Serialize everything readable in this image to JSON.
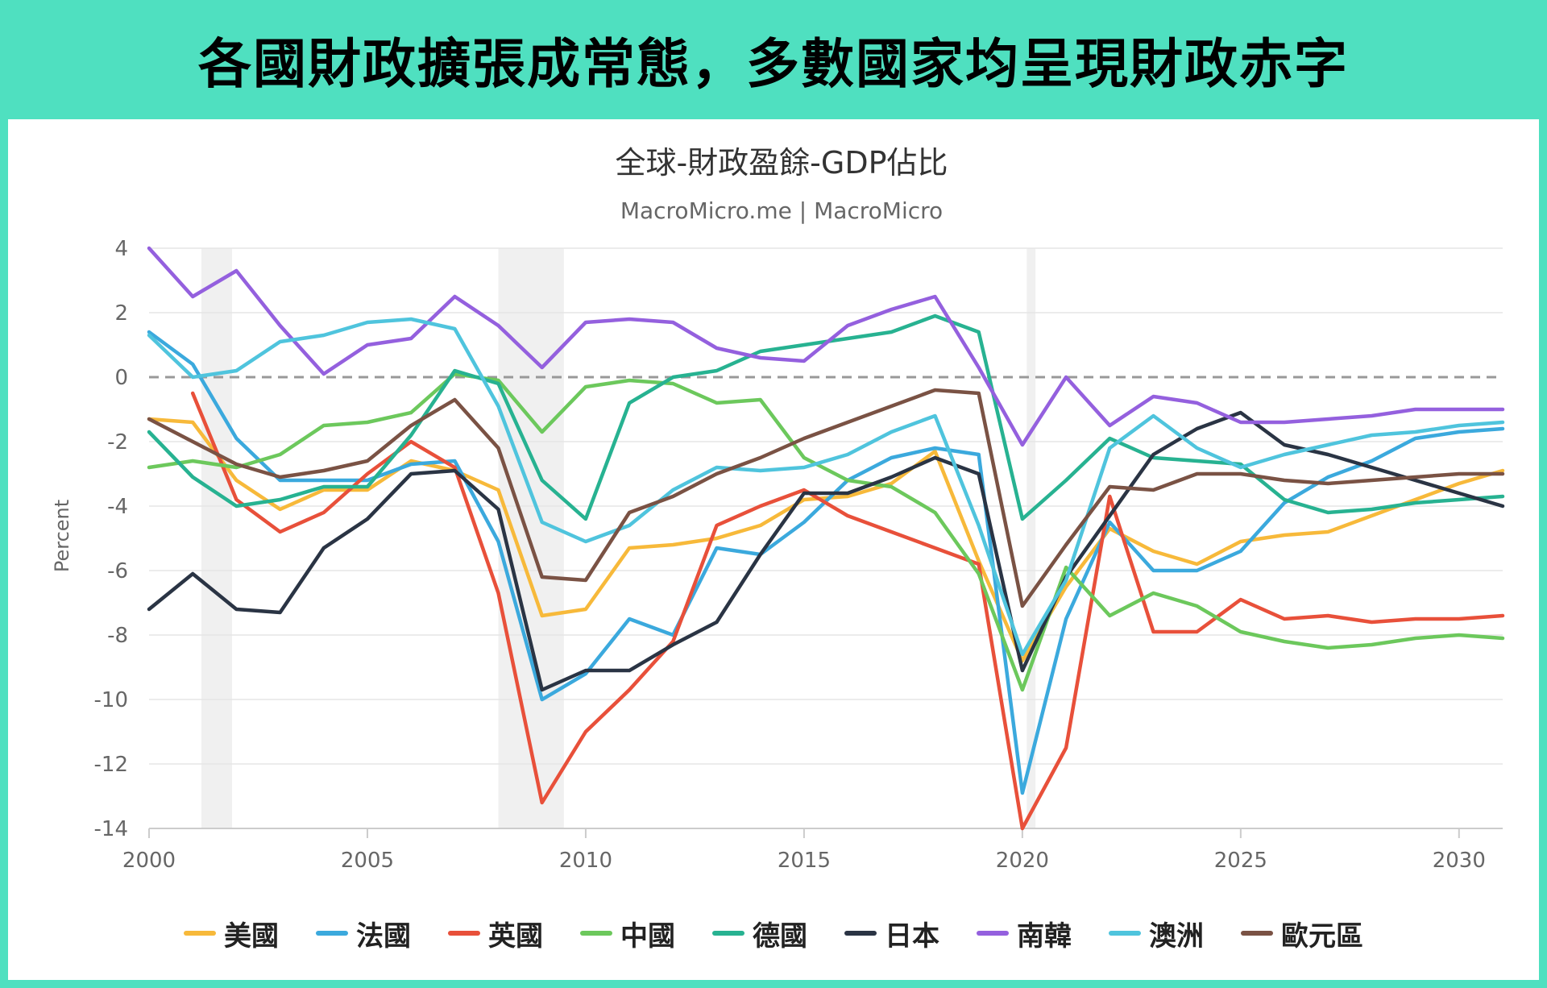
{
  "banner": {
    "title": "各國財政擴張成常態，多數國家均呈現財政赤字"
  },
  "colors": {
    "frame": "#4fe0c0",
    "recession_band": "#f0f0f0",
    "zero_line": "#999999"
  },
  "chart_data": {
    "type": "line",
    "title": "全球-財政盈餘-GDP佔比",
    "subtitle": "MacroMicro.me | MacroMicro",
    "ylabel": "Percent",
    "xlim": [
      2000,
      2031
    ],
    "ylim": [
      -14,
      4
    ],
    "x_ticks": [
      2000,
      2005,
      2010,
      2015,
      2020,
      2025,
      2030
    ],
    "y_ticks": [
      4,
      2,
      0,
      -2,
      -4,
      -6,
      -8,
      -10,
      -12,
      -14
    ],
    "grid": true,
    "legend_position": "bottom",
    "recession_bands": [
      [
        2001.2,
        2001.9
      ],
      [
        2008.0,
        2009.5
      ],
      [
        2020.1,
        2020.3
      ]
    ],
    "x": [
      2000,
      2001,
      2002,
      2003,
      2004,
      2005,
      2006,
      2007,
      2008,
      2009,
      2010,
      2011,
      2012,
      2013,
      2014,
      2015,
      2016,
      2017,
      2018,
      2019,
      2020,
      2021,
      2022,
      2023,
      2024,
      2025,
      2026,
      2027,
      2028,
      2029,
      2030,
      2031
    ],
    "series": [
      {
        "name": "美國",
        "color": "#f7b93a",
        "values": [
          -1.3,
          -1.4,
          -3.2,
          -4.1,
          -3.5,
          -3.5,
          -2.6,
          -2.9,
          -3.5,
          -7.4,
          -7.2,
          -5.3,
          -5.2,
          -5.0,
          -4.6,
          -3.8,
          -3.7,
          -3.3,
          -2.3,
          -5.7,
          -8.8,
          -6.5,
          -4.7,
          -5.4,
          -5.8,
          -5.1,
          -4.9,
          -4.8,
          -4.3,
          -3.8,
          -3.3,
          -2.9
        ]
      },
      {
        "name": "法國",
        "color": "#3ba9dd",
        "values": [
          1.4,
          0.4,
          -1.9,
          -3.2,
          -3.2,
          -3.2,
          -2.7,
          -2.6,
          -5.1,
          -10.0,
          -9.2,
          -7.5,
          -8.0,
          -5.3,
          -5.5,
          -4.5,
          -3.2,
          -2.5,
          -2.2,
          -2.4,
          -12.9,
          -7.5,
          -4.5,
          -6.0,
          -6.0,
          -5.4,
          -3.9,
          -3.1,
          -2.6,
          -1.9,
          -1.7,
          -1.6
        ]
      },
      {
        "name": "英國",
        "color": "#e8503a",
        "values": [
          null,
          -0.5,
          -3.8,
          -4.8,
          -4.2,
          -3.0,
          -2.0,
          -2.8,
          -6.7,
          -13.2,
          -11.0,
          -9.7,
          -8.2,
          -4.6,
          -4.0,
          -3.5,
          -4.3,
          -4.8,
          -5.3,
          -5.8,
          -14.0,
          -11.5,
          -3.7,
          -7.9,
          -7.9,
          -6.9,
          -7.5,
          -7.4,
          -7.6,
          -7.5,
          -7.5,
          -7.4
        ]
      },
      {
        "name": "中國",
        "color": "#6cc85c",
        "values": [
          -2.8,
          -2.6,
          -2.8,
          -2.4,
          -1.5,
          -1.4,
          -1.1,
          0.1,
          -0.1,
          -1.7,
          -0.3,
          -0.1,
          -0.2,
          -0.8,
          -0.7,
          -2.5,
          -3.2,
          -3.4,
          -4.2,
          -6.1,
          -9.7,
          -5.9,
          -7.4,
          -6.7,
          -7.1,
          -7.9,
          -8.2,
          -8.4,
          -8.3,
          -8.1,
          -8.0,
          -8.1
        ]
      },
      {
        "name": "德國",
        "color": "#27b291",
        "values": [
          -1.7,
          -3.1,
          -4.0,
          -3.8,
          -3.4,
          -3.4,
          -1.8,
          0.2,
          -0.2,
          -3.2,
          -4.4,
          -0.8,
          0.0,
          0.2,
          0.8,
          1.0,
          1.2,
          1.4,
          1.9,
          1.4,
          -4.4,
          -3.2,
          -1.9,
          -2.5,
          -2.6,
          -2.7,
          -3.8,
          -4.2,
          -4.1,
          -3.9,
          -3.8,
          -3.7
        ]
      },
      {
        "name": "日本",
        "color": "#2a3444",
        "values": [
          -7.2,
          -6.1,
          -7.2,
          -7.3,
          -5.3,
          -4.4,
          -3.0,
          -2.9,
          -4.1,
          -9.7,
          -9.1,
          -9.1,
          -8.3,
          -7.6,
          -5.5,
          -3.6,
          -3.6,
          -3.1,
          -2.5,
          -3.0,
          -9.1,
          -6.2,
          -4.3,
          -2.4,
          -1.6,
          -1.1,
          -2.1,
          -2.4,
          -2.8,
          -3.2,
          -3.6,
          -4.0
        ]
      },
      {
        "name": "南韓",
        "color": "#9460de",
        "values": [
          4.0,
          2.5,
          3.3,
          1.6,
          0.1,
          1.0,
          1.2,
          2.5,
          1.6,
          0.3,
          1.7,
          1.8,
          1.7,
          0.9,
          0.6,
          0.5,
          1.6,
          2.1,
          2.5,
          0.3,
          -2.1,
          0.0,
          -1.5,
          -0.6,
          -0.8,
          -1.4,
          -1.4,
          -1.3,
          -1.2,
          -1.0,
          -1.0,
          -1.0
        ]
      },
      {
        "name": "澳洲",
        "color": "#4fc4dd",
        "values": [
          1.3,
          0.0,
          0.2,
          1.1,
          1.3,
          1.7,
          1.8,
          1.5,
          -0.9,
          -4.5,
          -5.1,
          -4.6,
          -3.5,
          -2.8,
          -2.9,
          -2.8,
          -2.4,
          -1.7,
          -1.2,
          -4.6,
          -8.6,
          -6.3,
          -2.2,
          -1.2,
          -2.2,
          -2.8,
          -2.4,
          -2.1,
          -1.8,
          -1.7,
          -1.5,
          -1.4
        ]
      },
      {
        "name": "歐元區",
        "color": "#7a5244",
        "values": [
          -1.3,
          -2.0,
          -2.7,
          -3.1,
          -2.9,
          -2.6,
          -1.5,
          -0.7,
          -2.2,
          -6.2,
          -6.3,
          -4.2,
          -3.7,
          -3.0,
          -2.5,
          -1.9,
          -1.4,
          -0.9,
          -0.4,
          -0.5,
          -7.1,
          -5.2,
          -3.4,
          -3.5,
          -3.0,
          -3.0,
          -3.2,
          -3.3,
          -3.2,
          -3.1,
          -3.0,
          -3.0
        ]
      }
    ]
  }
}
